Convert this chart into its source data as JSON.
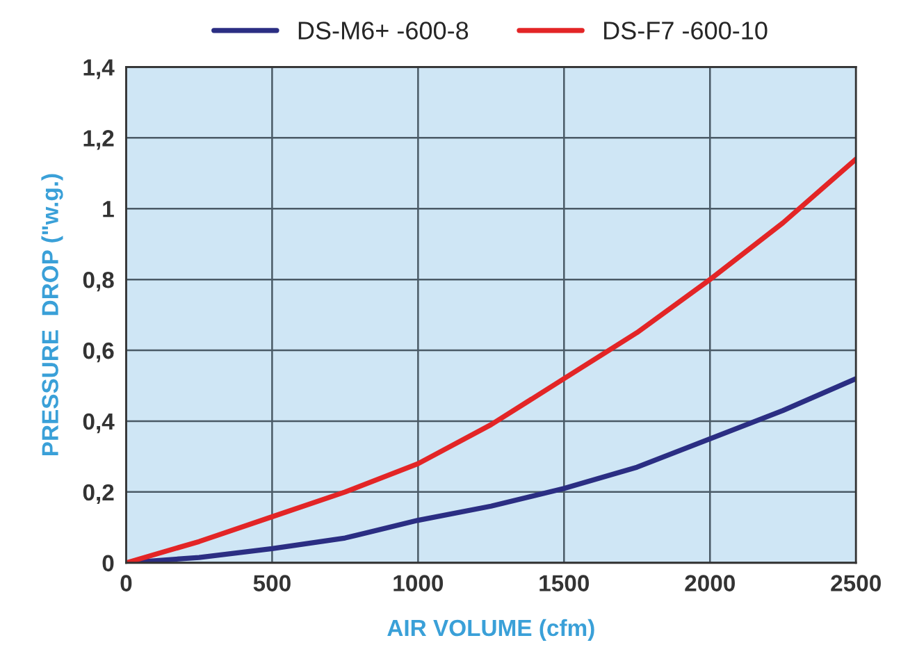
{
  "chart_data": {
    "type": "line",
    "xlabel": "AIR VOLUME (cfm)",
    "ylabel": "PRESSURE  DROP (\"w.g.)",
    "x": [
      0,
      250,
      500,
      750,
      1000,
      1250,
      1500,
      1750,
      2000,
      2250,
      2500
    ],
    "series": [
      {
        "name": "DS-M6+ -600-8",
        "color": "#2b2e83",
        "values": [
          0,
          0.015,
          0.04,
          0.07,
          0.12,
          0.16,
          0.21,
          0.27,
          0.35,
          0.43,
          0.52
        ]
      },
      {
        "name": "DS-F7 -600-10",
        "color": "#e32526",
        "values": [
          0,
          0.06,
          0.13,
          0.2,
          0.28,
          0.39,
          0.52,
          0.65,
          0.8,
          0.96,
          1.14
        ]
      }
    ],
    "xlim": [
      0,
      2500
    ],
    "xticks": [
      0,
      500,
      1000,
      1500,
      2000,
      2500
    ],
    "ylim": [
      0,
      1.4
    ],
    "yticks": [
      0,
      {
        "value": 0.2,
        "label": "0,2"
      },
      {
        "value": 0.4,
        "label": "0,4"
      },
      {
        "value": 0.6,
        "label": "0,6"
      },
      {
        "value": 0.8,
        "label": "0,8"
      },
      1,
      {
        "value": 1.2,
        "label": "1,2"
      },
      {
        "value": 1.4,
        "label": "1,4"
      }
    ],
    "grid": true,
    "legend": "top",
    "marker": "none",
    "line_style": "solid"
  }
}
